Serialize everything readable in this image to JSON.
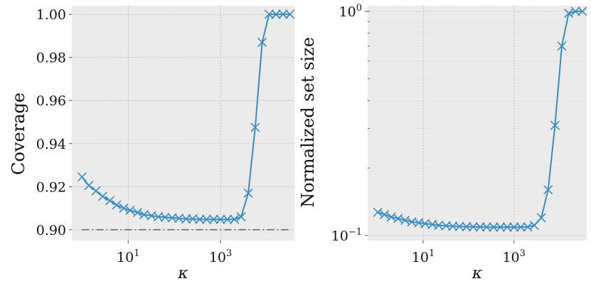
{
  "chart_data": [
    {
      "type": "line",
      "xlabel": "κ",
      "ylabel": "Coverage",
      "xscale": "log",
      "xlim": [
        0.6,
        40000
      ],
      "ylim": [
        0.895,
        1.004
      ],
      "yticks": [
        0.9,
        0.92,
        0.94,
        0.96,
        0.98,
        1.0
      ],
      "ytick_labels": [
        "0.90",
        "0.92",
        "0.94",
        "0.96",
        "0.98",
        "1.00"
      ],
      "xticks": [
        10,
        1000
      ],
      "xtick_labels": [
        {
          "base": "10",
          "exp": "1"
        },
        {
          "base": "10",
          "exp": "3"
        }
      ],
      "grid": true,
      "reference_line": {
        "y": 0.9,
        "style": "dash-dot",
        "color": "#808080"
      },
      "series": [
        {
          "color": "#3b8bc2",
          "marker": "x",
          "x": [
            1,
            1.4,
            2,
            2.8,
            4,
            5.6,
            8,
            11,
            16,
            22,
            32,
            45,
            63,
            90,
            126,
            180,
            250,
            355,
            500,
            710,
            1000,
            1410,
            2000,
            2800,
            4000,
            5650,
            8000,
            11300,
            16000,
            22600,
            32000
          ],
          "y": [
            0.9245,
            0.9205,
            0.918,
            0.9155,
            0.9135,
            0.9115,
            0.91,
            0.909,
            0.908,
            0.907,
            0.9065,
            0.906,
            0.9058,
            0.9055,
            0.9053,
            0.905,
            0.905,
            0.9048,
            0.9048,
            0.9048,
            0.9048,
            0.9048,
            0.9048,
            0.906,
            0.917,
            0.9475,
            0.987,
            1.0,
            1.0,
            1.0,
            1.0
          ]
        }
      ]
    },
    {
      "type": "line",
      "xlabel": "κ",
      "ylabel": "Normalized set size",
      "xscale": "log",
      "yscale": "log",
      "xlim": [
        0.6,
        40000
      ],
      "ylim": [
        0.095,
        1.06
      ],
      "yticks": [
        0.1,
        1.0
      ],
      "ytick_labels": [
        {
          "base": "10",
          "exp": "−1"
        },
        {
          "base": "10",
          "exp": "0"
        }
      ],
      "xticks": [
        10,
        1000
      ],
      "xtick_labels": [
        {
          "base": "10",
          "exp": "1"
        },
        {
          "base": "10",
          "exp": "3"
        }
      ],
      "grid": true,
      "series": [
        {
          "color": "#3b8bc2",
          "marker": "x",
          "x": [
            1,
            1.4,
            2,
            2.8,
            4,
            5.6,
            8,
            11,
            16,
            22,
            32,
            45,
            63,
            90,
            126,
            180,
            250,
            355,
            500,
            710,
            1000,
            1410,
            2000,
            2800,
            4000,
            5650,
            8000,
            11300,
            16000,
            22600,
            32000
          ],
          "y": [
            0.127,
            0.124,
            0.121,
            0.119,
            0.117,
            0.115,
            0.114,
            0.113,
            0.112,
            0.111,
            0.1105,
            0.11,
            0.1097,
            0.1095,
            0.1093,
            0.1092,
            0.1091,
            0.109,
            0.109,
            0.109,
            0.109,
            0.109,
            0.1092,
            0.111,
            0.12,
            0.16,
            0.31,
            0.7,
            0.98,
            1.0,
            1.0
          ]
        }
      ]
    }
  ]
}
